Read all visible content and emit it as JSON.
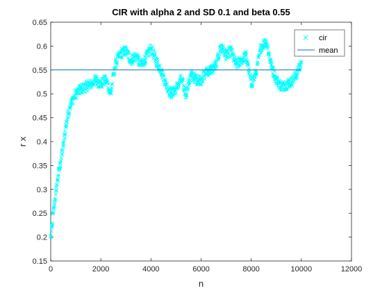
{
  "chart_data": {
    "type": "line",
    "title": "CIR with alpha 2 and SD 0.1 and beta 0.55",
    "xlabel": "n",
    "ylabel": "r x",
    "xlim": [
      0,
      12000
    ],
    "ylim": [
      0.15,
      0.65
    ],
    "xticks": [
      0,
      2000,
      4000,
      6000,
      8000,
      10000,
      12000
    ],
    "xtick_labels": [
      "0",
      "2000",
      "4000",
      "6000",
      "8000",
      "10000",
      "12000"
    ],
    "yticks": [
      0.15,
      0.2,
      0.25,
      0.3,
      0.35,
      0.4,
      0.45,
      0.5,
      0.55,
      0.6,
      0.65
    ],
    "ytick_labels": [
      "0.15",
      "0.2",
      "0.25",
      "0.3",
      "0.35",
      "0.4",
      "0.45",
      "0.5",
      "0.55",
      "0.6",
      "0.65"
    ],
    "grid": false,
    "legend_position": "top-right",
    "series": [
      {
        "name": "cir",
        "marker": "x",
        "color": "#00ffff",
        "x": [
          0,
          50,
          100,
          150,
          200,
          300,
          400,
          500,
          600,
          700,
          800,
          900,
          1000,
          1200,
          1400,
          1600,
          1800,
          2000,
          2200,
          2400,
          2500,
          2600,
          2800,
          3000,
          3200,
          3400,
          3600,
          3800,
          4000,
          4200,
          4400,
          4600,
          4800,
          5000,
          5200,
          5400,
          5600,
          5800,
          6000,
          6200,
          6400,
          6600,
          6800,
          7000,
          7200,
          7400,
          7600,
          7800,
          8000,
          8200,
          8400,
          8600,
          8800,
          9000,
          9200,
          9400,
          9600,
          9800,
          10000
        ],
        "y": [
          0.2,
          0.22,
          0.25,
          0.27,
          0.29,
          0.33,
          0.36,
          0.39,
          0.43,
          0.46,
          0.48,
          0.49,
          0.5,
          0.51,
          0.515,
          0.52,
          0.53,
          0.52,
          0.53,
          0.5,
          0.54,
          0.565,
          0.585,
          0.59,
          0.57,
          0.58,
          0.56,
          0.575,
          0.595,
          0.57,
          0.55,
          0.52,
          0.5,
          0.51,
          0.53,
          0.5,
          0.54,
          0.53,
          0.53,
          0.545,
          0.55,
          0.56,
          0.6,
          0.58,
          0.59,
          0.56,
          0.57,
          0.58,
          0.52,
          0.545,
          0.6,
          0.61,
          0.56,
          0.53,
          0.515,
          0.52,
          0.525,
          0.54,
          0.565
        ]
      },
      {
        "name": "mean",
        "color": "#0072bd",
        "x": [
          0,
          10000
        ],
        "y": [
          0.55,
          0.55
        ]
      }
    ]
  }
}
